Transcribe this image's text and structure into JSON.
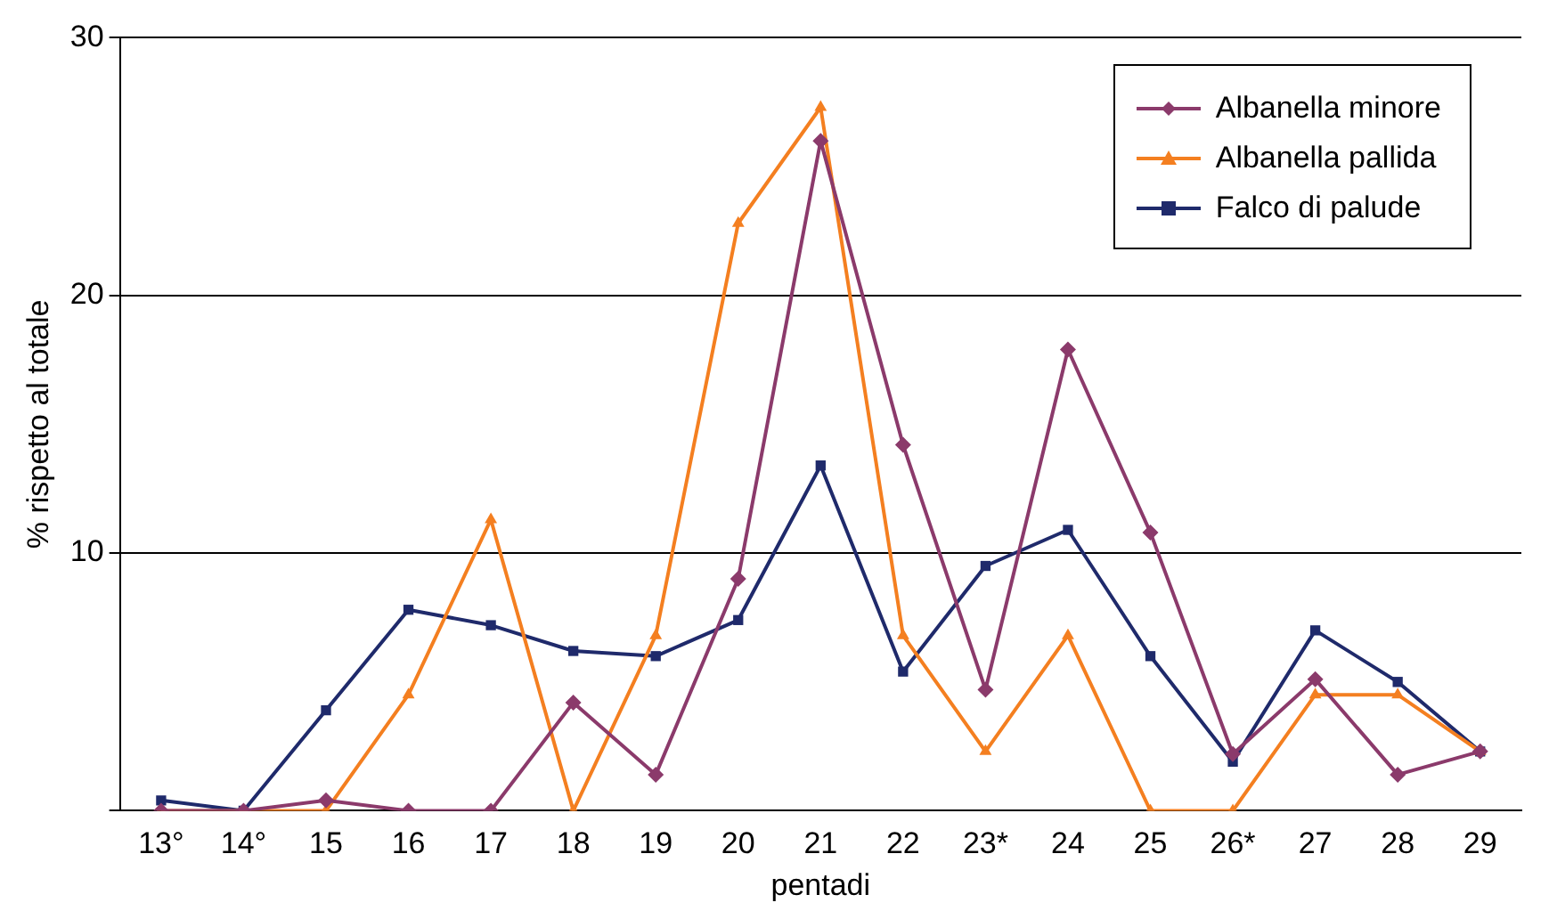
{
  "chart_data": {
    "type": "line",
    "xlabel": "pentadi",
    "ylabel": "% rispetto al totale",
    "categories": [
      "13°",
      "14°",
      "15",
      "16",
      "17",
      "18",
      "19",
      "20",
      "21",
      "22",
      "23*",
      "24",
      "25",
      "26*",
      "27",
      "28",
      "29"
    ],
    "series": [
      {
        "name": "Albanella minore",
        "color": "#8b3a6b",
        "marker": "diamond",
        "values": [
          0,
          0,
          0.4,
          0,
          0,
          4.2,
          1.4,
          9,
          26,
          14.2,
          4.7,
          17.9,
          10.8,
          2.2,
          5.1,
          1.4,
          2.3
        ]
      },
      {
        "name": "Albanella pallida",
        "color": "#f47f20",
        "marker": "triangle",
        "values": [
          0,
          0,
          0,
          4.5,
          11.3,
          0,
          6.8,
          22.8,
          27.3,
          6.8,
          2.3,
          6.8,
          0,
          0,
          4.5,
          4.5,
          2.3
        ]
      },
      {
        "name": "Falco di palude",
        "color": "#1f2a6b",
        "marker": "square",
        "values": [
          0.4,
          0,
          3.9,
          7.8,
          7.2,
          6.2,
          6,
          7.4,
          13.4,
          5.4,
          9.5,
          10.9,
          6,
          1.9,
          7,
          5,
          2.3
        ]
      }
    ],
    "ylim": [
      0,
      30
    ],
    "yticks": [
      {
        "value": 0,
        "label": null
      },
      10,
      20,
      30
    ],
    "grid": "y",
    "legend": "top right",
    "line_style": "solid"
  }
}
